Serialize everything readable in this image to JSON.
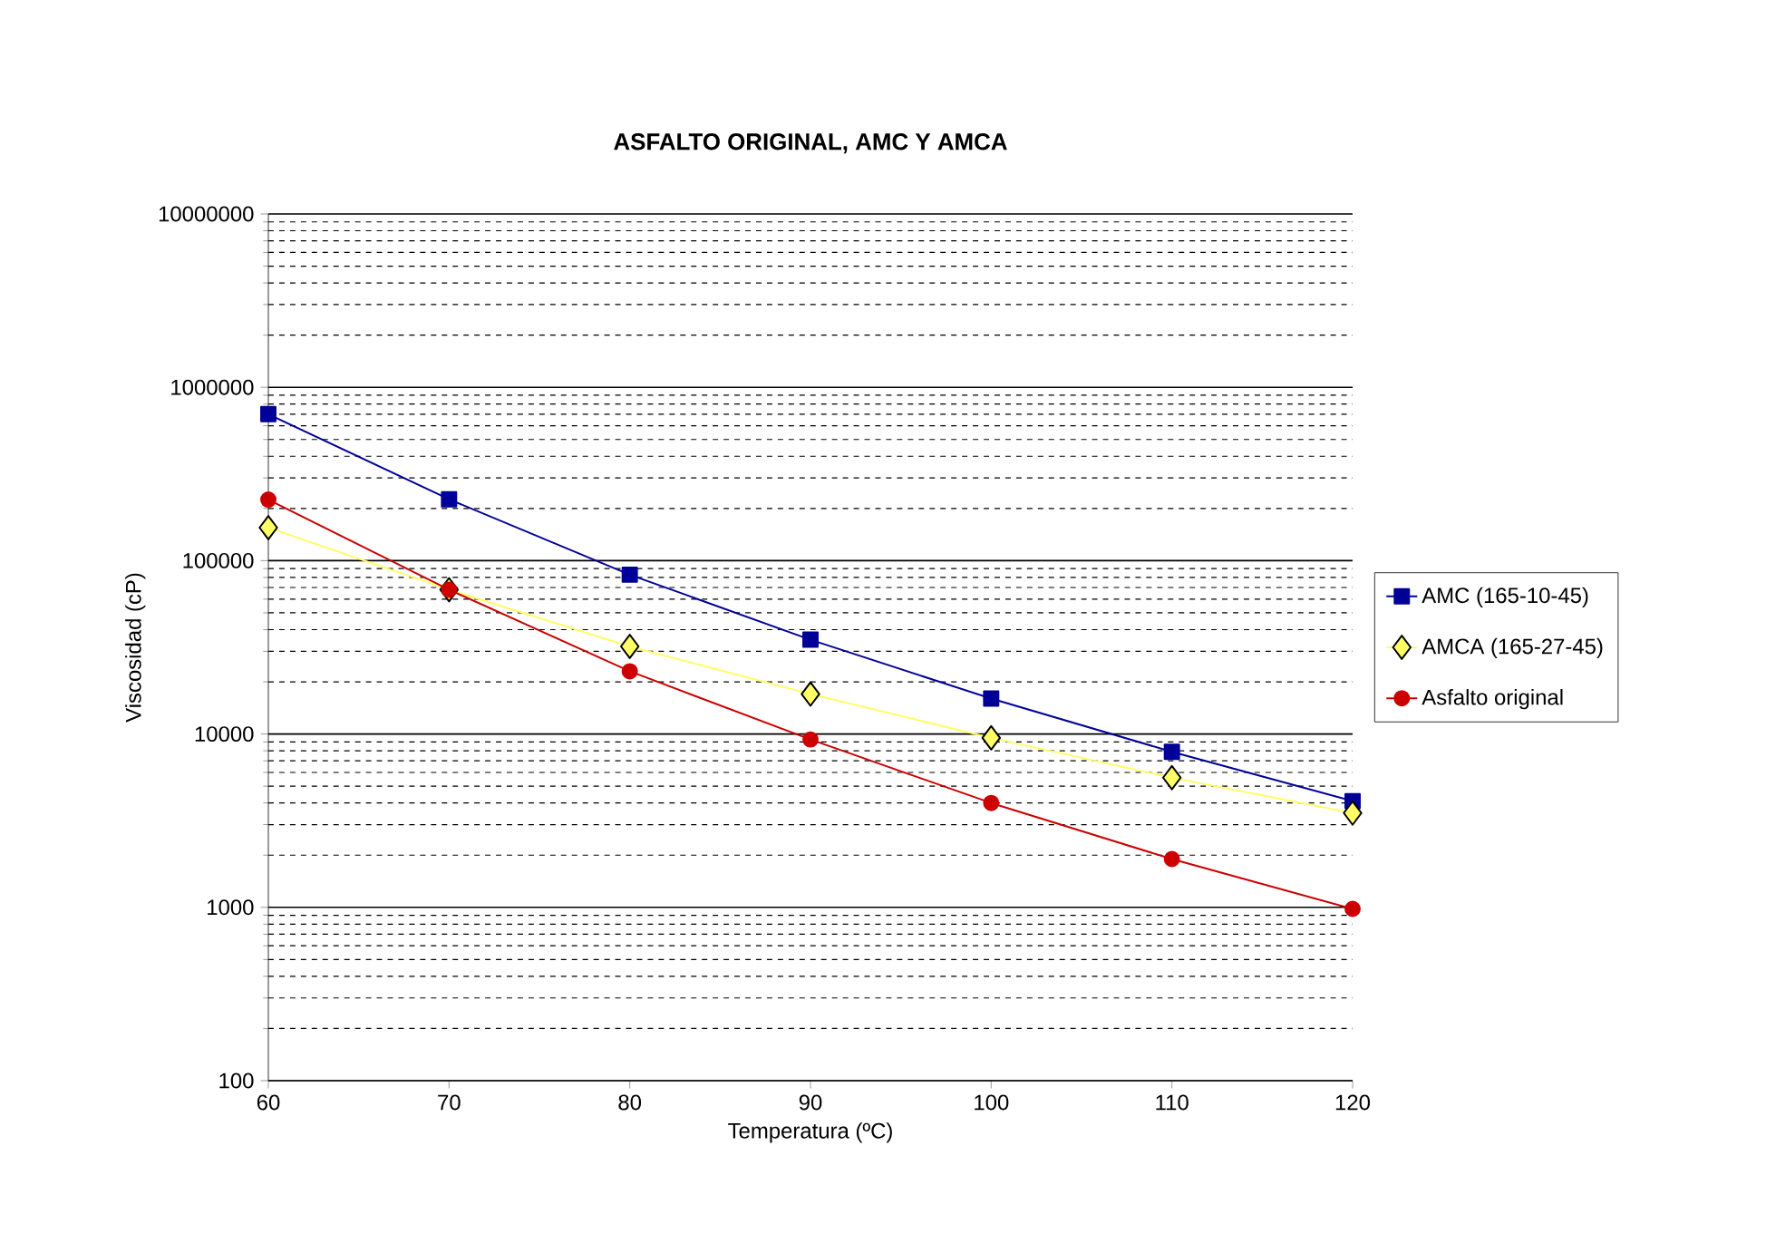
{
  "chart_data": {
    "type": "line",
    "title": "ASFALTO ORIGINAL, AMC Y AMCA",
    "xlabel": "Temperatura (ºC)",
    "ylabel": "Viscosidad (cP)",
    "x": [
      60,
      70,
      80,
      90,
      100,
      110,
      120
    ],
    "series": [
      {
        "name": "AMC (165-10-45)",
        "color": "#000099",
        "marker": "square",
        "values": [
          700000,
          226000,
          83000,
          35000,
          16000,
          7900,
          4100
        ]
      },
      {
        "name": "AMCA (165-27-45)",
        "color": "#ffff66",
        "marker": "diamond",
        "values": [
          155000,
          68000,
          32000,
          17000,
          9500,
          5600,
          3500
        ]
      },
      {
        "name": "Asfalto original",
        "color": "#cc0000",
        "marker": "circle",
        "values": [
          225000,
          68000,
          23000,
          9300,
          4000,
          1900,
          980
        ]
      }
    ],
    "xlim": [
      60,
      120
    ],
    "xticks": [
      60,
      70,
      80,
      90,
      100,
      110,
      120
    ],
    "ylim": [
      100,
      10000000
    ],
    "yticks": [
      100,
      1000,
      10000,
      100000,
      1000000,
      10000000
    ],
    "log": "y",
    "grid": "y",
    "legend": "right",
    "line_style": "solid"
  }
}
